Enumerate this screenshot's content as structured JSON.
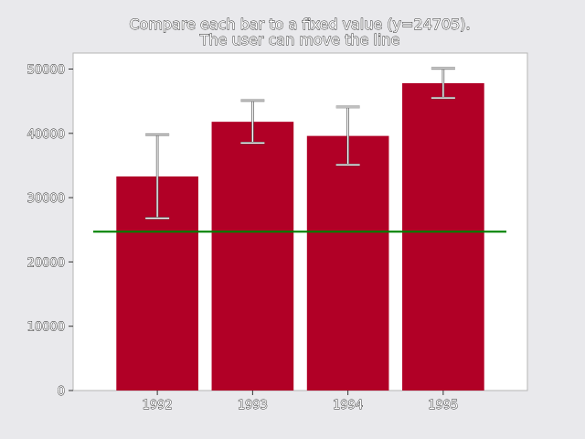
{
  "chart_data": {
    "type": "bar",
    "title": "Compare each bar to a fixed value (y=24705).",
    "subtitle": "The user can move the line",
    "xlabel": "",
    "ylabel": "",
    "categories": [
      "1992",
      "1993",
      "1994",
      "1995"
    ],
    "values": [
      33300,
      41800,
      39600,
      47800
    ],
    "errors": [
      6500,
      3300,
      4500,
      2300
    ],
    "reference_line": 24705,
    "ylim": [
      0,
      51000
    ],
    "yticks": [
      0,
      10000,
      20000,
      30000,
      40000,
      50000
    ],
    "ytick_labels": [
      "0",
      "10000",
      "20000",
      "30000",
      "40000",
      "50000"
    ],
    "grid": false,
    "legend": "none"
  },
  "colors": {
    "background": "#e9e9ec",
    "plot_background": "#ffffff",
    "bar": "#b10026",
    "reference_line": "#008000",
    "error_bar": "#ffffff",
    "error_bar_outline": "#555555"
  }
}
